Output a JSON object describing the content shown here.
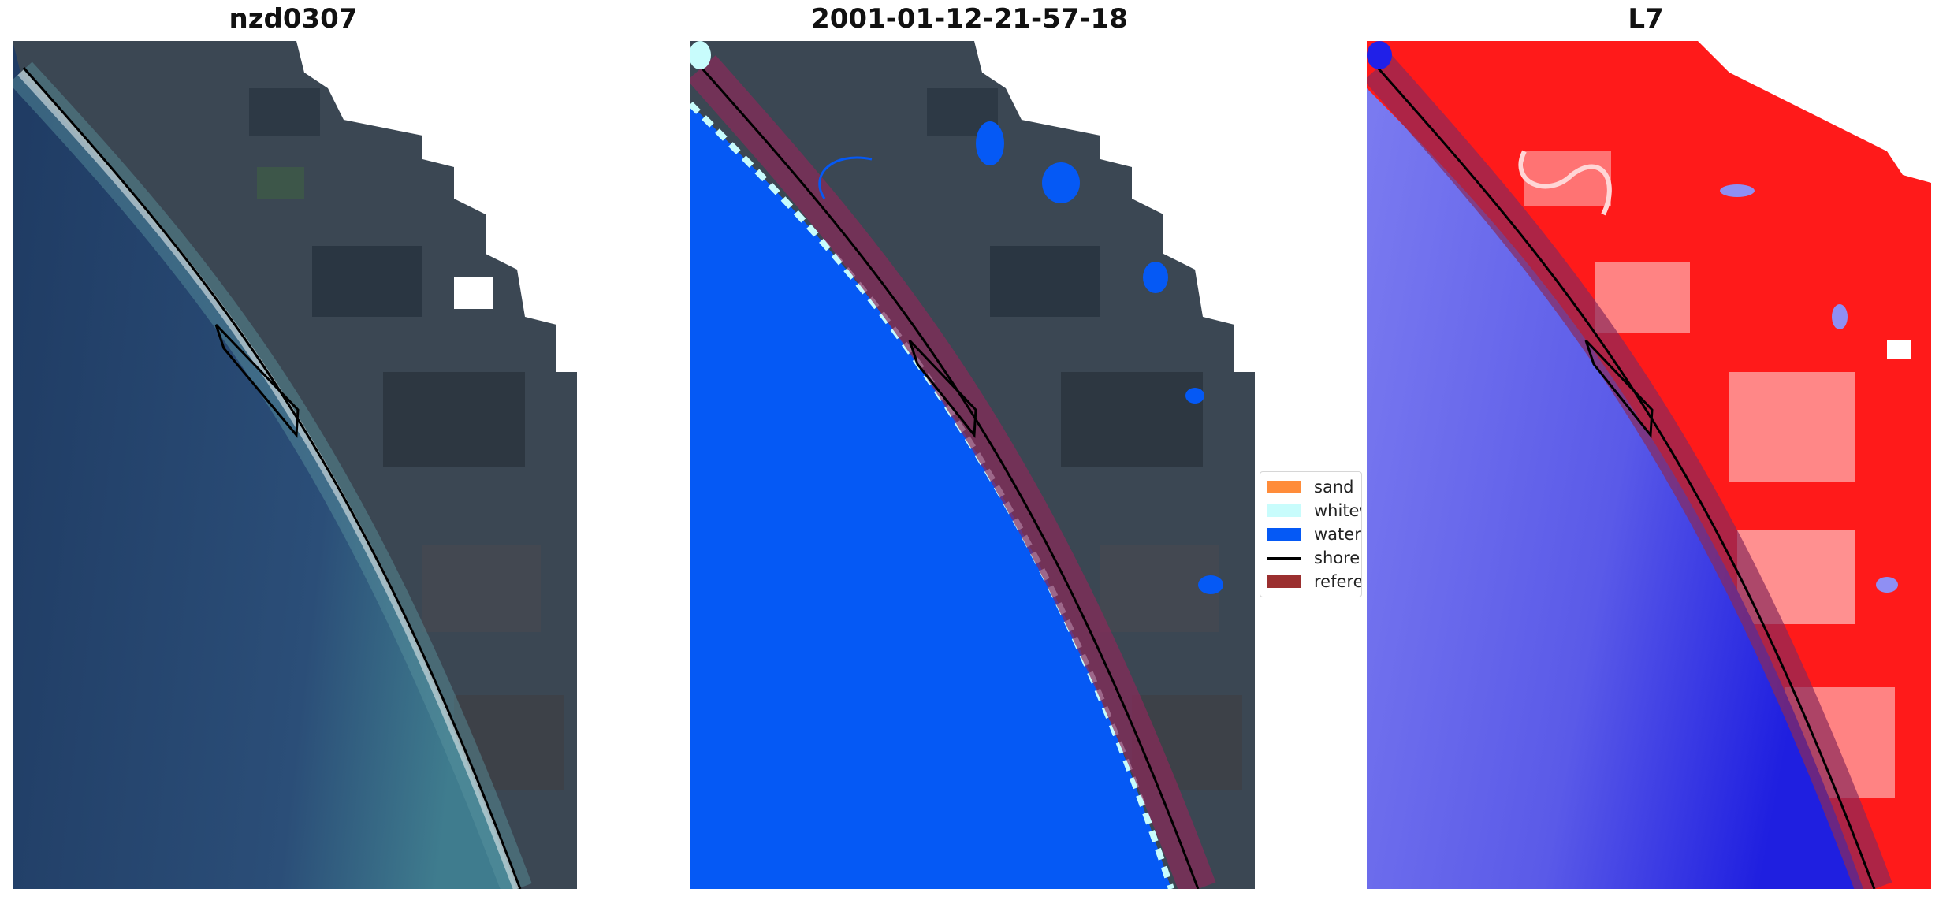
{
  "panels": [
    {
      "title": "nzd0307"
    },
    {
      "title": "2001-01-12-21-57-18"
    },
    {
      "title": "L7"
    }
  ],
  "legend": {
    "items": [
      {
        "label": "sand",
        "color": "#ff8c3a"
      },
      {
        "label": "whitewater",
        "color": "#c8fcfc"
      },
      {
        "label": "water",
        "color": "#0559f5"
      },
      {
        "label": "shoreline",
        "color": "#000000"
      },
      {
        "label": "reference shoreline buffer",
        "color": "#9b2f2f"
      }
    ]
  },
  "colors": {
    "ocean_rgb": "#2c4a73",
    "land_rgb": "#3e4a56",
    "water_class": "#0559f5",
    "buffer": "#8a2a5a",
    "index_positive": "#ff1010",
    "index_negative": "#2a2ae8"
  }
}
